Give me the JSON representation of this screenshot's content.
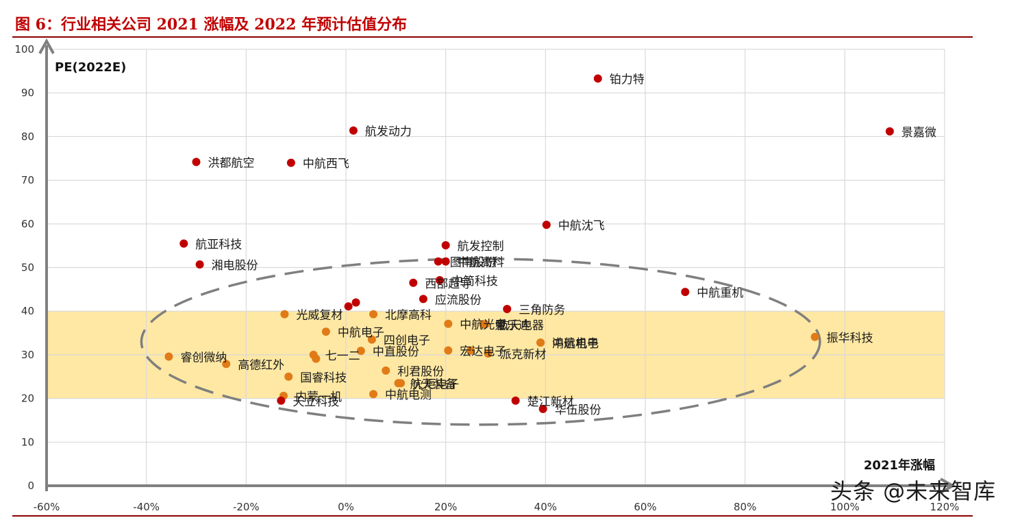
{
  "figure_title": "图 6：行业相关公司 2021 涨幅及 2022 年预计估值分布",
  "watermark": "头条 @未来智库",
  "colors": {
    "red_point": "#c00000",
    "orange_point": "#e07b17",
    "band": "#ffe699",
    "ellipse": "#7f7f7f"
  },
  "chart_data": {
    "type": "scatter",
    "xlabel": "2021年涨幅",
    "ylabel": "PE(2022E)",
    "xlim": [
      -60,
      120
    ],
    "ylim": [
      0,
      100
    ],
    "x_ticks": [
      "-60%",
      "-40%",
      "-20%",
      "0%",
      "20%",
      "40%",
      "60%",
      "80%",
      "100%",
      "120%"
    ],
    "y_ticks": [
      "0",
      "10",
      "20",
      "30",
      "40",
      "50",
      "60",
      "70",
      "80",
      "90",
      "100"
    ],
    "highlight_band": {
      "y_from": 20,
      "y_to": 40
    },
    "ellipse": {
      "cx": 27,
      "cy": 33,
      "rx": 68,
      "ry": 19
    },
    "points": [
      {
        "name": "铂力特",
        "x": 50.5,
        "y": 93.3,
        "color": "red"
      },
      {
        "name": "景嘉微",
        "x": 109,
        "y": 81.2,
        "color": "red"
      },
      {
        "name": "航发动力",
        "x": 1.5,
        "y": 81.4,
        "color": "red"
      },
      {
        "name": "洪都航空",
        "x": -30,
        "y": 74.2,
        "color": "red"
      },
      {
        "name": "中航西飞",
        "x": -11,
        "y": 74.0,
        "color": "red"
      },
      {
        "name": "中航沈飞",
        "x": 40.2,
        "y": 59.8,
        "color": "red"
      },
      {
        "name": "航亚科技",
        "x": -32.5,
        "y": 55.5,
        "color": "red"
      },
      {
        "name": "湘电股份",
        "x": -29.3,
        "y": 50.7,
        "color": "red"
      },
      {
        "name": "航发控制",
        "x": 20,
        "y": 55.1,
        "color": "red"
      },
      {
        "name": "图南股份",
        "x": 18.5,
        "y": 51.4,
        "color": "red"
      },
      {
        "name": "中航高科",
        "x": 20,
        "y": 51.4,
        "color": "red"
      },
      {
        "name": "中简科技",
        "x": 18.8,
        "y": 47.1,
        "color": "red"
      },
      {
        "name": "西部超导",
        "x": 13.5,
        "y": 46.5,
        "color": "red"
      },
      {
        "name": "应流股份",
        "x": 15.5,
        "y": 42.8,
        "color": "red"
      },
      {
        "name": "",
        "x": 2,
        "y": 42.0,
        "color": "red"
      },
      {
        "name": "",
        "x": 0.5,
        "y": 41.1,
        "color": "red"
      },
      {
        "name": "三角防务",
        "x": 32.3,
        "y": 40.5,
        "color": "red"
      },
      {
        "name": "中航重机",
        "x": 68,
        "y": 44.4,
        "color": "red"
      },
      {
        "name": "光威复材",
        "x": -12.3,
        "y": 39.3,
        "color": "orange"
      },
      {
        "name": "北摩高科",
        "x": 5.5,
        "y": 39.3,
        "color": "orange"
      },
      {
        "name": "中航光电",
        "x": 20.5,
        "y": 37.1,
        "color": "orange"
      },
      {
        "name": "航天电器",
        "x": 28,
        "y": 37.0,
        "color": "orange"
      },
      {
        "name": "爱乐达",
        "x": 27.5,
        "y": 37.0,
        "color": "orange"
      },
      {
        "name": "中航电子",
        "x": -4,
        "y": 35.3,
        "color": "orange"
      },
      {
        "name": "四创电子",
        "x": 5.2,
        "y": 33.5,
        "color": "orange"
      },
      {
        "name": "振华科技",
        "x": 94,
        "y": 34.1,
        "color": "orange"
      },
      {
        "name": "鸿远电子",
        "x": 39,
        "y": 32.8,
        "color": "orange"
      },
      {
        "name": "中航机电",
        "x": 39,
        "y": 32.8,
        "color": "orange"
      },
      {
        "name": "中直股份",
        "x": 3,
        "y": 30.9,
        "color": "orange"
      },
      {
        "name": "七一二",
        "x": -6.5,
        "y": 30.0,
        "color": "orange"
      },
      {
        "name": "",
        "x": -6,
        "y": 29.1,
        "color": "orange"
      },
      {
        "name": "睿创微纳",
        "x": -35.5,
        "y": 29.6,
        "color": "orange"
      },
      {
        "name": "高德红外",
        "x": -24,
        "y": 27.9,
        "color": "orange"
      },
      {
        "name": "宏达电子",
        "x": 20.5,
        "y": 31.0,
        "color": "orange"
      },
      {
        "name": "",
        "x": 25,
        "y": 31.0,
        "color": "orange"
      },
      {
        "name": "派克新材",
        "x": 28.5,
        "y": 30.3,
        "color": "orange"
      },
      {
        "name": "利君股份",
        "x": 8,
        "y": 26.4,
        "color": "orange"
      },
      {
        "name": "国睿科技",
        "x": -11.5,
        "y": 25.0,
        "color": "orange"
      },
      {
        "name": "航天装备",
        "x": 10.5,
        "y": 23.5,
        "color": "orange"
      },
      {
        "name": "火炬电子",
        "x": 11,
        "y": 23.5,
        "color": "orange"
      },
      {
        "name": "中航电测",
        "x": 5.5,
        "y": 21.0,
        "color": "orange"
      },
      {
        "name": "内蒙一机",
        "x": -12.5,
        "y": 20.6,
        "color": "orange"
      },
      {
        "name": "天立科技",
        "x": -13,
        "y": 19.5,
        "color": "red"
      },
      {
        "name": "楚江新材",
        "x": 34,
        "y": 19.5,
        "color": "red"
      },
      {
        "name": "华伍股份",
        "x": 39.5,
        "y": 17.6,
        "color": "red"
      }
    ]
  }
}
